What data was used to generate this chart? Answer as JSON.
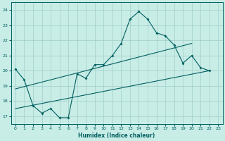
{
  "xlabel": "Humidex (Indice chaleur)",
  "ylabel": "",
  "xlim": [
    -0.5,
    23.5
  ],
  "ylim": [
    16.5,
    24.5
  ],
  "yticks": [
    17,
    18,
    19,
    20,
    21,
    22,
    23,
    24
  ],
  "xticks": [
    0,
    1,
    2,
    3,
    4,
    5,
    6,
    7,
    8,
    9,
    10,
    11,
    12,
    13,
    14,
    15,
    16,
    17,
    18,
    19,
    20,
    21,
    22,
    23
  ],
  "bg_color": "#c8ece6",
  "grid_color": "#a0cfc8",
  "line_color": "#006060",
  "line1_x": [
    0,
    1,
    2,
    3,
    4,
    5,
    6,
    7,
    8,
    9,
    10,
    11,
    12,
    13,
    14,
    15,
    16,
    17,
    18,
    19,
    20,
    21,
    22
  ],
  "line1_y": [
    20.1,
    19.4,
    17.7,
    17.2,
    17.5,
    16.9,
    16.9,
    19.8,
    19.5,
    20.4,
    20.4,
    21.0,
    21.8,
    23.4,
    23.9,
    23.4,
    22.5,
    22.3,
    21.7,
    20.5,
    21.0,
    20.2,
    20.0
  ],
  "line2_x": [
    0,
    22
  ],
  "line2_y": [
    17.5,
    20.0
  ],
  "line3_x": [
    0,
    20
  ],
  "line3_y": [
    18.8,
    21.8
  ]
}
